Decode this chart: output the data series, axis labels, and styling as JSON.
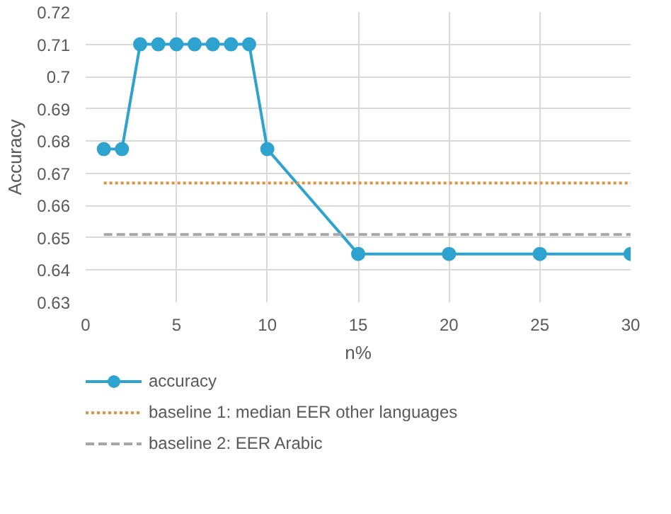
{
  "chart_data": {
    "type": "line",
    "xlabel": "n%",
    "ylabel": "Accuracy",
    "xlim": [
      0,
      30
    ],
    "xticks": [
      0,
      5,
      10,
      15,
      20,
      25,
      30
    ],
    "ylim": [
      0.63,
      0.72
    ],
    "yticks": [
      0.63,
      0.64,
      0.65,
      0.66,
      0.67,
      0.68,
      0.69,
      {
        "value": 0.7,
        "label": "0.7"
      },
      0.71,
      0.72
    ],
    "grid": true,
    "legend": "bottom",
    "series": [
      {
        "name": "accuracy",
        "color": "#2ea3cf",
        "marker": "circle",
        "line_style": "solid",
        "x": [
          1,
          2,
          3,
          4,
          5,
          6,
          7,
          8,
          9,
          10,
          15,
          20,
          25,
          30
        ],
        "values": [
          0.6775,
          0.6775,
          0.71,
          0.71,
          0.71,
          0.71,
          0.71,
          0.71,
          0.71,
          0.6775,
          0.645,
          0.645,
          0.645,
          0.645
        ]
      },
      {
        "name": "baseline 1: median EER other languages",
        "color": "#e0913a",
        "marker": "none",
        "line_style": "dotted",
        "x": [
          1,
          30
        ],
        "values": [
          0.667,
          0.667
        ]
      },
      {
        "name": "baseline 2: EER Arabic",
        "color": "#a6a6a6",
        "marker": "none",
        "line_style": "dashed",
        "x": [
          1,
          30
        ],
        "values": [
          0.651,
          0.651
        ]
      }
    ]
  }
}
